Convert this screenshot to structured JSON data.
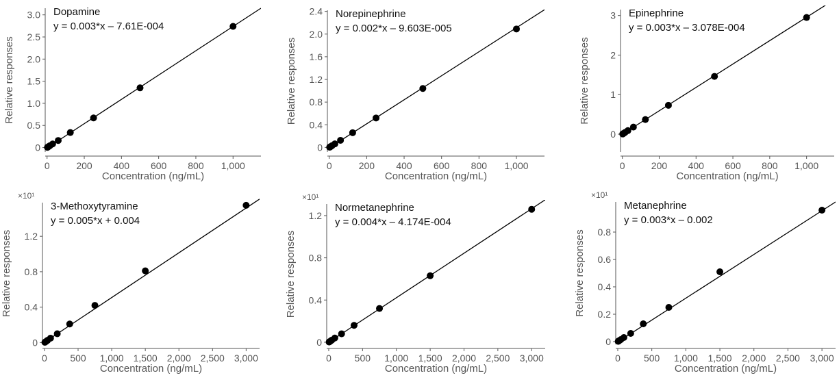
{
  "chart_data": [
    {
      "type": "scatter",
      "title": "Dopamine",
      "equation": "y = 0.003*x – 7.61E-004",
      "xlabel": "Concentration (ng/mL)",
      "ylabel": "Relative responses",
      "scale_factor": "",
      "xlim": [
        -10,
        1150
      ],
      "ylim": [
        -0.1,
        3.15
      ],
      "xticks": [
        0,
        200,
        400,
        600,
        800,
        1000
      ],
      "xtick_labels": [
        "0",
        "200",
        "400",
        "600",
        "800",
        "1,000"
      ],
      "yticks": [
        0,
        0.5,
        1.0,
        1.5,
        2.0,
        2.5,
        3.0
      ],
      "ytick_labels": [
        "0",
        "0.5",
        "1.0",
        "1.5",
        "2.0",
        "2.5",
        "3.0"
      ],
      "fit_line": {
        "x": [
          -10,
          1150
        ],
        "y": [
          -0.037,
          3.15
        ]
      },
      "series": [
        {
          "x": [
            2,
            4,
            8,
            15,
            30,
            60,
            125,
            250,
            500,
            1000
          ],
          "y": [
            0.005,
            0.011,
            0.022,
            0.042,
            0.082,
            0.16,
            0.34,
            0.67,
            1.35,
            2.74
          ]
        }
      ],
      "grid": false
    },
    {
      "type": "scatter",
      "title": "Norepinephrine",
      "equation": "y = 0.002*x – 9.603E-005",
      "xlabel": "Concentration (ng/mL)",
      "ylabel": "Relative responses",
      "scale_factor": "",
      "xlim": [
        -10,
        1150
      ],
      "ylim": [
        -0.08,
        2.42
      ],
      "xticks": [
        0,
        200,
        400,
        600,
        800,
        1000
      ],
      "xtick_labels": [
        "0",
        "200",
        "400",
        "600",
        "800",
        "1,000"
      ],
      "yticks": [
        0,
        0.4,
        0.8,
        1.2,
        1.6,
        2.0,
        2.4
      ],
      "ytick_labels": [
        "0",
        "0.4",
        "0.8",
        "1.2",
        "1.6",
        "2.0",
        "2.4"
      ],
      "fit_line": {
        "x": [
          -10,
          1150
        ],
        "y": [
          -0.028,
          2.43
        ]
      },
      "series": [
        {
          "x": [
            2,
            4,
            8,
            15,
            30,
            60,
            125,
            250,
            500,
            1000
          ],
          "y": [
            0.004,
            0.008,
            0.017,
            0.032,
            0.063,
            0.126,
            0.26,
            0.52,
            1.04,
            2.09
          ]
        }
      ],
      "grid": false
    },
    {
      "type": "scatter",
      "title": "Epinephrine",
      "equation": "y = 0.003*x – 3.078E-004",
      "xlabel": "Concentration (ng/mL)",
      "ylabel": "Relative responses",
      "scale_factor": "",
      "xlim": [
        -10,
        1150
      ],
      "ylim": [
        -0.45,
        3.15
      ],
      "xticks": [
        0,
        200,
        400,
        600,
        800,
        1000
      ],
      "xtick_labels": [
        "0",
        "200",
        "400",
        "600",
        "800",
        "1,000"
      ],
      "yticks": [
        0,
        1,
        2,
        3
      ],
      "ytick_labels": [
        "0",
        "1",
        "2",
        "3"
      ],
      "fit_line": {
        "x": [
          -10,
          1150
        ],
        "y": [
          -0.03,
          3.4
        ]
      },
      "series": [
        {
          "x": [
            2,
            4,
            8,
            15,
            30,
            60,
            125,
            250,
            500,
            1000
          ],
          "y": [
            0.006,
            0.012,
            0.024,
            0.045,
            0.09,
            0.18,
            0.37,
            0.73,
            1.46,
            2.95
          ]
        }
      ],
      "grid": false
    },
    {
      "type": "scatter",
      "title": "3-Methoxytyramine",
      "equation": "y = 0.005*x + 0.004",
      "xlabel": "Concentration (ng/mL)",
      "ylabel": "Relative responses",
      "scale_factor": "×10¹",
      "xlim": [
        -30,
        3200
      ],
      "ylim": [
        -0.02,
        1.58
      ],
      "xticks": [
        0,
        500,
        1000,
        1500,
        2000,
        2500,
        3000
      ],
      "xtick_labels": [
        "0",
        "500",
        "1,000",
        "1,500",
        "2,000",
        "2,500",
        "3,000"
      ],
      "yticks": [
        0,
        0.4,
        0.8,
        1.2
      ],
      "ytick_labels": [
        "0",
        "0.4",
        "0.8",
        "1.2"
      ],
      "fit_line": {
        "x": [
          -30,
          3200
        ],
        "y": [
          -0.012,
          1.62
        ]
      },
      "series": [
        {
          "x": [
            6,
            12,
            24,
            45,
            90,
            190,
            375,
            750,
            1500,
            3000
          ],
          "y": [
            0.003,
            0.007,
            0.013,
            0.025,
            0.05,
            0.1,
            0.21,
            0.42,
            0.81,
            1.55
          ]
        }
      ],
      "grid": false
    },
    {
      "type": "scatter",
      "title": "Normetanephrine",
      "equation": "y = 0.004*x – 4.174E-004",
      "xlabel": "Concentration (ng/mL)",
      "ylabel": "Relative responses",
      "scale_factor": "×10¹",
      "xlim": [
        -30,
        3200
      ],
      "ylim": [
        -0.02,
        1.31
      ],
      "xticks": [
        0,
        500,
        1000,
        1500,
        2000,
        2500,
        3000
      ],
      "xtick_labels": [
        "0",
        "500",
        "1,000",
        "1,500",
        "2,000",
        "2,500",
        "3,000"
      ],
      "yticks": [
        0,
        0.4,
        0.8,
        1.2
      ],
      "ytick_labels": [
        "0",
        "0.4",
        "0.8",
        "1.2"
      ],
      "fit_line": {
        "x": [
          -30,
          3200
        ],
        "y": [
          -0.013,
          1.35
        ]
      },
      "series": [
        {
          "x": [
            6,
            12,
            24,
            45,
            90,
            190,
            375,
            750,
            1500,
            3000
          ],
          "y": [
            0.002,
            0.005,
            0.01,
            0.02,
            0.04,
            0.08,
            0.16,
            0.32,
            0.63,
            1.26
          ]
        }
      ],
      "grid": false
    },
    {
      "type": "scatter",
      "title": "Metanephrine",
      "equation": "y = 0.003*x – 0.002",
      "xlabel": "Concentration (ng/mL)",
      "ylabel": "Relative responses",
      "scale_factor": "×10¹",
      "xlim": [
        -30,
        3200
      ],
      "ylim": [
        -0.02,
        1.02
      ],
      "xticks": [
        0,
        500,
        1000,
        1500,
        2000,
        2500,
        3000
      ],
      "xtick_labels": [
        "0",
        "500",
        "1,000",
        "1,500",
        "2,000",
        "2,500",
        "3,000"
      ],
      "yticks": [
        0,
        0.2,
        0.4,
        0.6,
        0.8
      ],
      "ytick_labels": [
        "0",
        "0.2",
        "0.4",
        "0.6",
        "0.8"
      ],
      "fit_line": {
        "x": [
          -30,
          3200
        ],
        "y": [
          -0.012,
          1.02
        ]
      },
      "series": [
        {
          "x": [
            6,
            12,
            24,
            45,
            90,
            190,
            375,
            750,
            1500,
            3000
          ],
          "y": [
            0.002,
            0.004,
            0.008,
            0.015,
            0.03,
            0.06,
            0.13,
            0.25,
            0.51,
            0.96
          ]
        }
      ],
      "grid": false
    }
  ]
}
